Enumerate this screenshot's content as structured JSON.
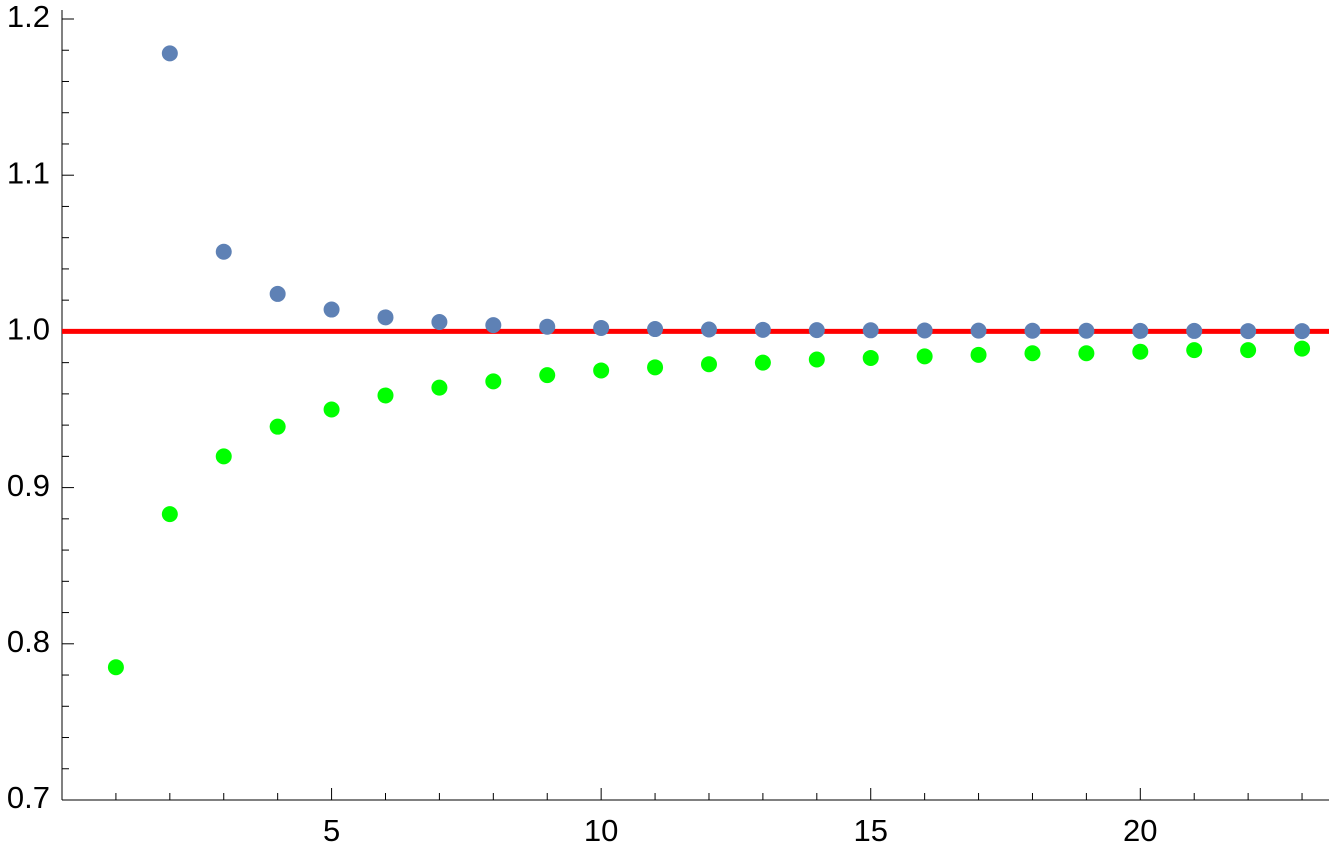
{
  "chart_data": {
    "type": "scatter",
    "xlim": [
      0,
      23.5
    ],
    "ylim": [
      0.7,
      1.2
    ],
    "xticks": [
      5,
      10,
      15,
      20
    ],
    "xminorticks": [
      1,
      2,
      3,
      4,
      6,
      7,
      8,
      9,
      11,
      12,
      13,
      14,
      16,
      17,
      18,
      19,
      21,
      22,
      23
    ],
    "yticks": [
      0.7,
      0.8,
      0.9,
      {
        "value": 1,
        "label": "1.0"
      },
      1.1,
      1.2
    ],
    "yminorticks": [
      0.72,
      0.74,
      0.76,
      0.78,
      0.82,
      0.84,
      0.86,
      0.88,
      0.92,
      0.94,
      0.96,
      0.98,
      1.02,
      1.04,
      1.06,
      1.08,
      1.12,
      1.14,
      1.16,
      1.18
    ],
    "reference_line": {
      "value": 1,
      "color": "#ff0000"
    },
    "series": [
      {
        "color": "#5e81b5",
        "x": [
          2,
          3,
          4,
          5,
          6,
          7,
          8,
          9,
          10,
          11,
          12,
          13,
          14,
          15,
          16,
          17,
          18,
          19,
          20,
          21,
          22,
          23
        ],
        "values": [
          1.178,
          1.051,
          1.024,
          1.014,
          1.009,
          1.006,
          1.004,
          1.003,
          1.0022,
          1.0015,
          1.0012,
          1.001,
          1.0008,
          1.0007,
          1.0006,
          1.0005,
          1.0004,
          1.0004,
          1.0003,
          1.0003,
          1.0002,
          1.0002
        ]
      },
      {
        "color": "#00ff00",
        "x": [
          1,
          2,
          3,
          4,
          5,
          6,
          7,
          8,
          9,
          10,
          11,
          12,
          13,
          14,
          15,
          16,
          17,
          18,
          19,
          20,
          21,
          22,
          23
        ],
        "values": [
          0.785,
          0.883,
          0.92,
          0.939,
          0.95,
          0.959,
          0.964,
          0.968,
          0.972,
          0.975,
          0.977,
          0.979,
          0.98,
          0.982,
          0.983,
          0.984,
          0.985,
          0.986,
          0.986,
          0.987,
          0.988,
          0.988,
          0.989
        ]
      }
    ]
  }
}
